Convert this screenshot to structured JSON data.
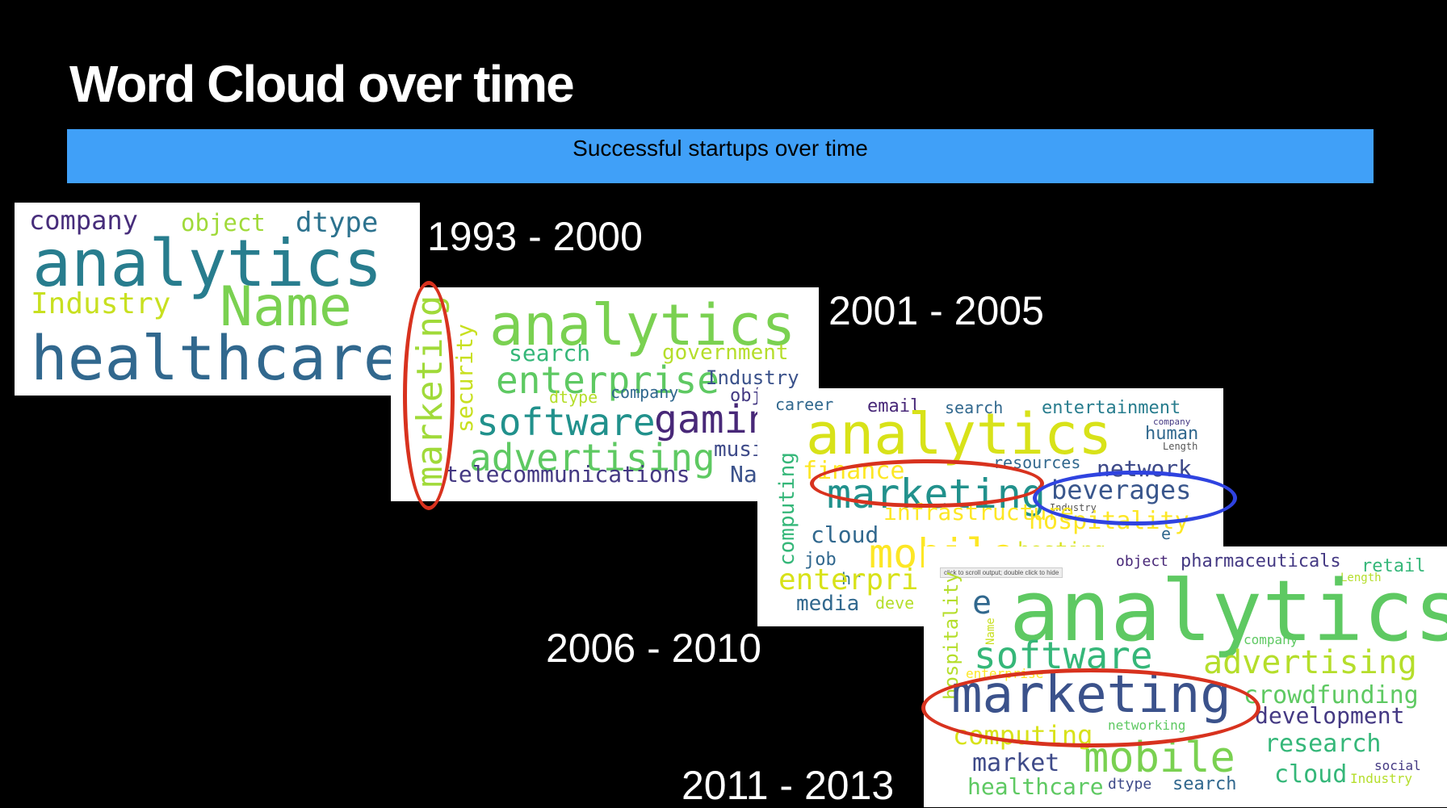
{
  "slide": {
    "title": "Word Cloud over time",
    "banner": "Successful startups over time"
  },
  "periods": [
    "1993 - 2000",
    "2001 - 2005",
    "2006 - 2010",
    "2011 - 2013"
  ],
  "clouds": [
    {
      "period": "1993 - 2000",
      "words": [
        "company",
        "object",
        "dtype",
        "analytics",
        "Industry",
        "Name",
        "healthcare"
      ]
    },
    {
      "period": "2001 - 2005",
      "words": [
        "marketing",
        "security",
        "analytics",
        "search",
        "government",
        "enterprise",
        "Industry",
        "dtype",
        "company",
        "obj",
        "software",
        "gamin",
        "advertising",
        "musi",
        "telecommunications",
        "Nam"
      ]
    },
    {
      "period": "2006 - 2010",
      "words": [
        "career",
        "email",
        "search",
        "entertainment",
        "company",
        "human",
        "Length",
        "analytics",
        "finance",
        "resources",
        "network",
        "marketing",
        "beverages",
        "Industry",
        "infrastructure",
        "hospitality",
        "computing",
        "cloud",
        "job",
        "hr",
        "mobile",
        "hosting",
        "enterpri",
        "media",
        "deve",
        "commerce",
        "e"
      ]
    },
    {
      "period": "2011 - 2013",
      "words": [
        "object",
        "pharmaceuticals",
        "retail",
        "Length",
        "e",
        "analytics",
        "hospitality",
        "Name",
        "company",
        "software",
        "advertising",
        "enterprise",
        "marketing",
        "crowdfunding",
        "development",
        "computing",
        "networking",
        "research",
        "market",
        "mobile",
        "social",
        "cloud",
        "Industry",
        "healthcare",
        "dtype",
        "search"
      ]
    }
  ],
  "tooltip": "click to scroll output; double click to hide",
  "highlight_colors": {
    "marketing": "#d8321e",
    "beverages": "#2f43e0"
  }
}
